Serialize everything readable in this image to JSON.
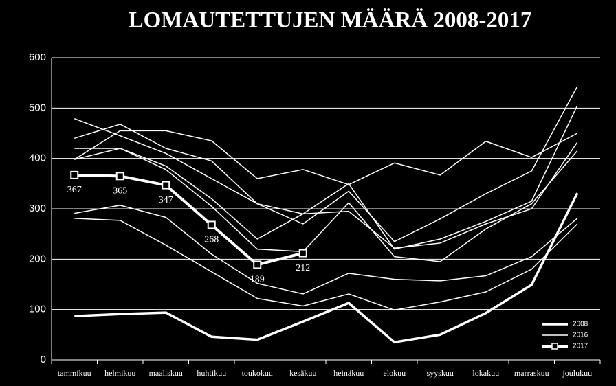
{
  "chart_data": {
    "type": "line",
    "title": "LOMAUTETTUJEN MÄÄRÄ 2008-2017",
    "categories": [
      "tammikuu",
      "helmikuu",
      "maaliskuu",
      "huhtikuu",
      "toukokuu",
      "kesäkuu",
      "heinäkuu",
      "elokuu",
      "syyskuu",
      "lokakuu",
      "marraskuu",
      "joulukuu"
    ],
    "ylim": [
      0,
      600
    ],
    "yticks": [
      0,
      100,
      200,
      300,
      400,
      500,
      600
    ],
    "grid": true,
    "legend": "bottom-right",
    "series": [
      {
        "color": "#ffffff",
        "line_width": 1.5,
        "values": [
          440,
          468,
          420,
          395,
          310,
          290,
          350,
          220,
          240,
          275,
          315,
          505
        ]
      },
      {
        "color": "#ffffff",
        "line_width": 1.5,
        "values": [
          398,
          455,
          455,
          435,
          360,
          378,
          348,
          391,
          367,
          434,
          402,
          450
        ]
      },
      {
        "color": "#ffffff",
        "line_width": 1.5,
        "values": [
          420,
          420,
          385,
          320,
          240,
          290,
          295,
          222,
          232,
          270,
          300,
          432
        ]
      },
      {
        "color": "#ffffff",
        "line_width": 1.5,
        "values": [
          398,
          420,
          378,
          305,
          220,
          215,
          312,
          205,
          195,
          260,
          310,
          415
        ]
      },
      {
        "color": "#ffffff",
        "line_width": 1.5,
        "values": [
          291,
          307,
          283,
          210,
          152,
          131,
          172,
          160,
          157,
          167,
          205,
          281
        ]
      },
      {
        "color": "#ffffff",
        "line_width": 1.5,
        "values": [
          281,
          277,
          228,
          175,
          122,
          107,
          131,
          99,
          115,
          135,
          180,
          270
        ]
      },
      {
        "name": "2008",
        "color": "#ffffff",
        "line_width": 3.5,
        "values": [
          87,
          91,
          94,
          46,
          40,
          76,
          113,
          35,
          50,
          93,
          149,
          331
        ]
      },
      {
        "name": "2016",
        "color": "#ffffff",
        "line_width": 1.5,
        "values": [
          479,
          445,
          410,
          360,
          310,
          270,
          335,
          235,
          280,
          330,
          375,
          543
        ]
      },
      {
        "name": "2017",
        "color": "#ffffff",
        "line_width": 4,
        "marker": "square",
        "data_labels": true,
        "values": [
          367,
          365,
          347,
          268,
          189,
          212,
          null,
          null,
          null,
          null,
          null,
          null
        ]
      }
    ]
  }
}
